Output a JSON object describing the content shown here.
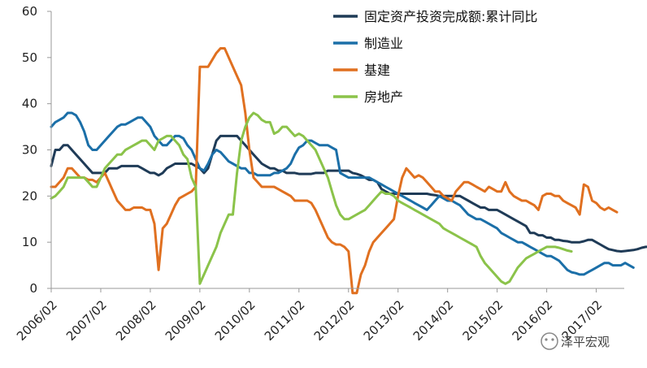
{
  "chart_data": {
    "type": "line",
    "title": "",
    "xlabel": "",
    "ylabel": "",
    "ylim": [
      0,
      60
    ],
    "yticks": [
      0,
      10,
      20,
      30,
      40,
      50,
      60
    ],
    "xticks": [
      "2006/02",
      "2007/02",
      "2008/02",
      "2009/02",
      "2010/02",
      "2011/02",
      "2012/02",
      "2013/02",
      "2014/02",
      "2015/02",
      "2016/02",
      "2017/02"
    ],
    "x_start": "2006/02",
    "x_step": "month",
    "legend_position": "top-right",
    "grid": false,
    "series": [
      {
        "name": "固定资产投资完成额:累计同比",
        "color": "#1f3b57",
        "values": [
          26.5,
          30,
          30,
          31,
          31,
          30,
          29,
          28,
          27,
          26,
          25,
          25,
          25,
          25,
          26,
          26,
          26,
          26.5,
          26.5,
          26.5,
          26.5,
          26.5,
          26,
          25.5,
          25,
          25,
          24.5,
          25,
          26,
          26.5,
          27,
          27,
          27,
          27,
          27,
          26.5,
          26,
          25,
          26,
          29,
          32,
          33,
          33,
          33,
          33,
          33,
          32,
          31,
          30,
          29,
          28,
          27,
          26.5,
          26,
          26,
          25.5,
          25.5,
          25,
          25,
          25,
          24.8,
          24.8,
          24.8,
          24.8,
          25,
          25,
          25,
          25.5,
          25.5,
          25.5,
          25.5,
          25.5,
          25.5,
          25,
          24.8,
          24.5,
          24,
          23.5,
          23.5,
          23,
          21.5,
          21,
          20.5,
          20.5,
          20.5,
          20.5,
          20.5,
          20.5,
          20.5,
          20.5,
          20.5,
          20.5,
          20.3,
          20.2,
          20,
          20,
          20,
          20,
          20,
          20,
          19.5,
          19,
          18.5,
          18,
          17.5,
          17.5,
          17,
          17,
          17,
          16.5,
          16,
          15.5,
          15,
          14.5,
          14,
          13.5,
          12,
          12,
          11.5,
          11.5,
          11,
          11,
          10.5,
          10.5,
          10.3,
          10.2,
          10,
          10,
          10,
          10.2,
          10.5,
          10.5,
          10,
          9.5,
          9,
          8.5,
          8.3,
          8.1,
          8,
          8.1,
          8.2,
          8.3,
          8.5,
          8.8,
          9,
          9,
          8.8,
          8.6,
          8.4,
          8.2,
          7.8
        ],
        "values_note": ""
      },
      {
        "name": "制造业",
        "color": "#1b6fa8",
        "values": [
          35,
          36,
          36.5,
          37,
          38,
          38,
          37.5,
          36,
          34,
          31,
          30,
          30,
          31,
          32,
          33,
          34,
          35,
          35.5,
          35.5,
          36,
          36.5,
          37,
          37,
          36,
          35,
          33,
          32,
          31,
          31,
          32,
          33,
          33,
          32.5,
          31,
          30,
          28,
          26,
          25.5,
          27,
          29,
          30,
          29.5,
          28.5,
          27.5,
          27,
          26.5,
          26,
          26,
          25,
          25,
          24.5,
          24.5,
          24.5,
          24.5,
          25,
          25,
          25.5,
          26,
          27,
          29,
          30.5,
          31,
          32,
          32,
          31.5,
          31,
          31,
          31,
          30.5,
          30,
          25,
          24.5,
          24,
          24,
          24,
          24,
          24,
          24,
          23.5,
          23,
          22.5,
          22,
          21.5,
          21,
          20.5,
          20,
          19.5,
          19,
          18.5,
          18,
          17.5,
          17,
          18,
          19,
          20,
          19.5,
          19,
          19,
          18.5,
          18,
          17,
          16,
          15.5,
          15,
          15,
          14.5,
          14,
          13.5,
          13,
          12,
          11.5,
          11,
          10.5,
          10,
          10,
          9.5,
          9,
          8.5,
          8,
          7.5,
          7,
          7,
          6.5,
          6,
          5,
          4,
          3.5,
          3.3,
          3,
          3,
          3.5,
          4,
          4.5,
          5,
          5.5,
          5.5,
          5,
          5,
          5,
          5.5,
          5,
          4.5
        ],
        "values_note": ""
      },
      {
        "name": "基建",
        "color": "#e07020",
        "values": [
          22,
          22,
          23,
          24,
          26,
          26,
          25,
          24,
          24,
          23.5,
          23.5,
          23,
          24,
          25,
          23,
          21,
          19,
          18,
          17,
          17,
          17.5,
          17.5,
          17.5,
          17,
          17,
          14,
          4,
          13,
          14,
          16,
          18,
          19.5,
          20,
          20.5,
          21,
          22,
          48,
          48,
          48,
          49.5,
          51,
          52,
          52,
          50,
          48,
          46,
          44,
          38,
          30,
          24,
          23,
          22,
          22,
          22,
          22,
          21.5,
          21,
          20.5,
          20,
          19,
          19,
          19,
          19,
          18.5,
          17,
          15,
          13,
          11,
          10,
          9.5,
          9.5,
          9,
          8,
          -1,
          -1,
          3,
          5,
          8,
          10,
          11,
          12,
          13,
          14,
          15,
          20,
          24,
          26,
          25,
          24,
          24.5,
          24,
          23,
          22,
          21,
          21,
          20,
          19.5,
          19,
          21,
          22,
          23,
          23,
          22.5,
          22,
          21.5,
          21,
          22,
          21.5,
          21,
          21,
          23,
          21,
          20,
          19.5,
          19,
          19,
          18.5,
          18,
          17,
          20,
          20.5,
          20.5,
          20,
          20,
          19,
          18.5,
          18,
          17.5,
          16,
          22.5,
          22,
          19,
          18.5,
          17.5,
          17,
          17.5,
          17,
          16.5
        ],
        "values_note": ""
      },
      {
        "name": "房地产",
        "color": "#8bc34a",
        "values": [
          19.5,
          20,
          21,
          22,
          24,
          24,
          24,
          24,
          24,
          23,
          22,
          22,
          24,
          26,
          27,
          28,
          29,
          29,
          30,
          30.5,
          31,
          31.5,
          32,
          32,
          31,
          30,
          32,
          32.5,
          33,
          33,
          32,
          31,
          29,
          28,
          24,
          22,
          1,
          3,
          5,
          7,
          9,
          12,
          14,
          16,
          16,
          25,
          32,
          35,
          37,
          38,
          37.5,
          36.5,
          36,
          36,
          33.5,
          34,
          35,
          35,
          34,
          33,
          33.5,
          33,
          32,
          31,
          30,
          28,
          26,
          24,
          21,
          18,
          16,
          15,
          15,
          15.5,
          16,
          16.5,
          17,
          18,
          19,
          20,
          21,
          20.5,
          20.5,
          20,
          19,
          18.5,
          18,
          17.5,
          17,
          16.5,
          16,
          15.5,
          15,
          14.5,
          14,
          13,
          12.5,
          12,
          11.5,
          11,
          10.5,
          10,
          9.5,
          9,
          7,
          5.5,
          4.5,
          3.5,
          2.5,
          1.5,
          1,
          1.5,
          3,
          4.5,
          5.5,
          6.5,
          7,
          7.5,
          8,
          8.5,
          9,
          9,
          9,
          8.8,
          8.5,
          8.2,
          8
        ]
      }
    ]
  },
  "watermark": {
    "text": "泽平宏观"
  }
}
